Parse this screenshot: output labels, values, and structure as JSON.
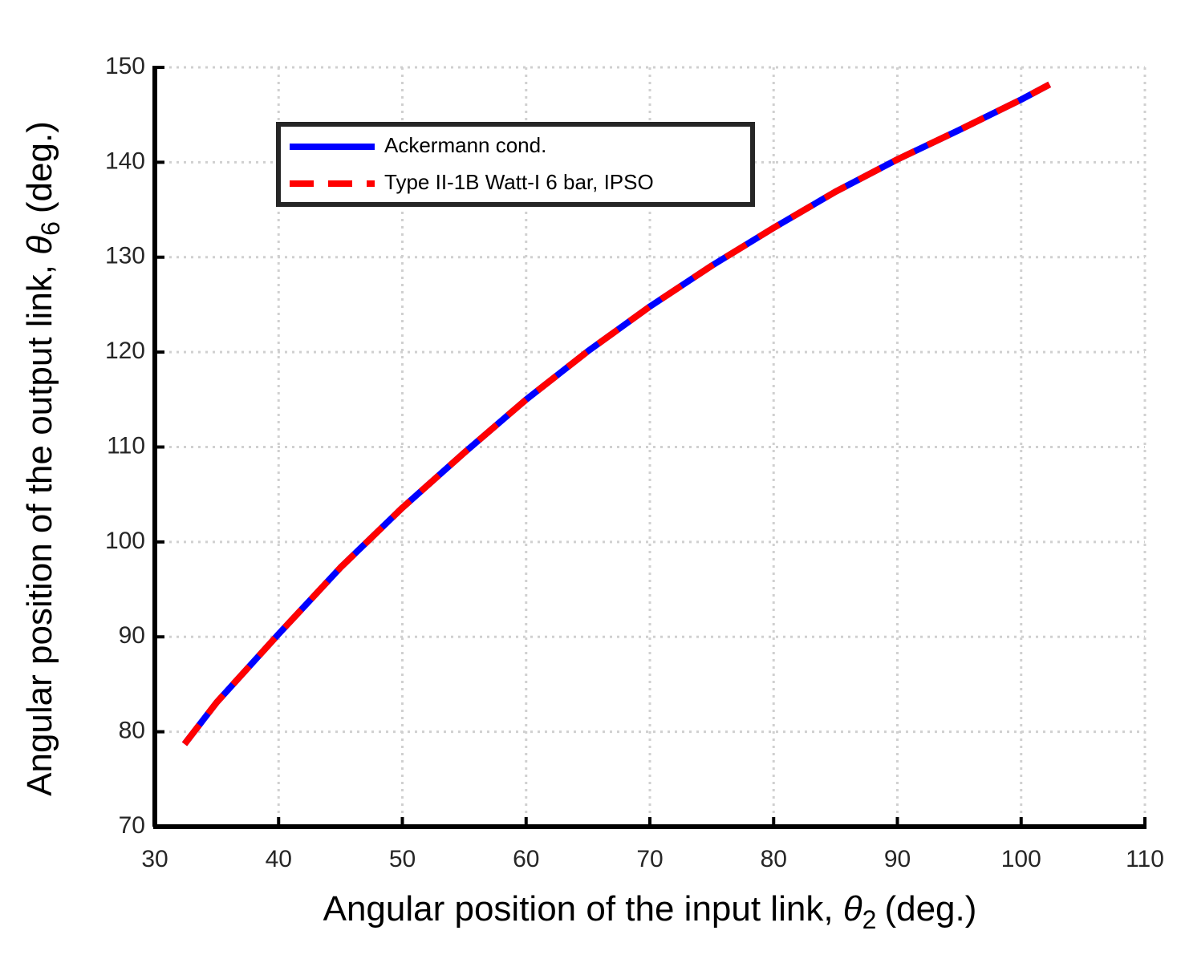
{
  "chart_data": {
    "type": "line",
    "x_label": {
      "text": "Angular position of the input link, ",
      "symbol": "θ",
      "subscript": "2",
      "unit": "(deg.)"
    },
    "y_label": {
      "text": "Angular position of the output link, ",
      "symbol": "θ",
      "subscript": "6",
      "unit": "(deg.)"
    },
    "xlim": [
      30,
      110
    ],
    "xticks": [
      30,
      40,
      50,
      60,
      70,
      80,
      90,
      100,
      110
    ],
    "ylim": [
      70,
      150
    ],
    "yticks": [
      70,
      80,
      90,
      100,
      110,
      120,
      130,
      140,
      150
    ],
    "grid": true,
    "legend": "upper left",
    "series": [
      {
        "name": "Ackermann cond.",
        "color": "#0000ff",
        "style": "solid",
        "x": [
          32.4,
          35,
          40,
          45,
          50,
          55,
          60,
          65,
          70,
          75,
          80,
          85,
          90,
          95,
          100,
          102.3
        ],
        "values": [
          78.7,
          83.1,
          90.3,
          97.3,
          103.6,
          109.4,
          115,
          120.1,
          124.8,
          129.1,
          133.1,
          136.9,
          140.3,
          143.4,
          146.6,
          148.2
        ]
      },
      {
        "name": "Type II-1B Watt-I 6 bar, IPSO",
        "color": "#ff0000",
        "style": "dashed",
        "x": [
          32.4,
          35,
          40,
          45,
          50,
          55,
          60,
          65,
          70,
          75,
          80,
          85,
          90,
          95,
          100,
          102.3
        ],
        "values": [
          78.7,
          83.1,
          90.3,
          97.3,
          103.6,
          109.4,
          115,
          120.1,
          124.8,
          129.1,
          133.1,
          136.9,
          140.3,
          143.4,
          146.6,
          148.2
        ]
      }
    ]
  }
}
